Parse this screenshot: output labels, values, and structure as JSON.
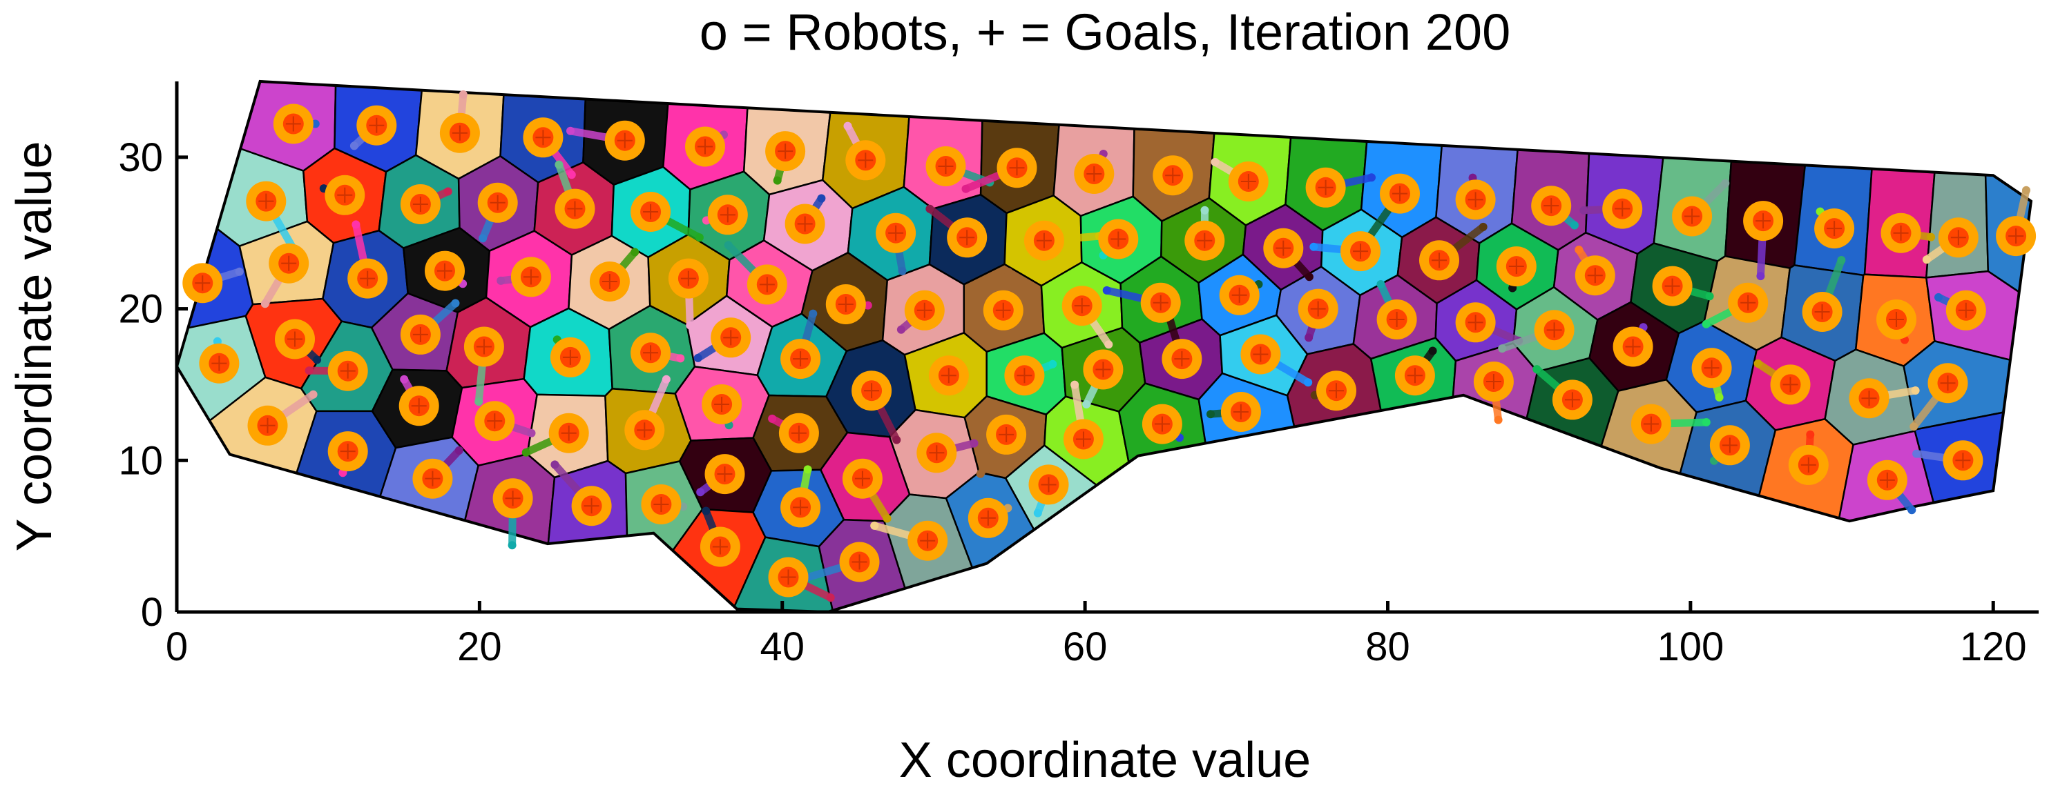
{
  "chart_data": {
    "type": "scatter",
    "title": "o = Robots, + = Goals, Iteration 200",
    "xlabel": "X coordinate value",
    "ylabel": "Y coordinate value",
    "xlim": [
      0,
      123
    ],
    "ylim": [
      0,
      35
    ],
    "x_ticks": [
      0,
      20,
      40,
      60,
      80,
      100,
      120
    ],
    "y_ticks": [
      0,
      10,
      20,
      30
    ],
    "grid": false,
    "legend": "none",
    "robot_color": "#FFA500",
    "goal_color": "#FF4500",
    "cell_border_color": "#000000",
    "region_boundary": [
      [
        0,
        16.2
      ],
      [
        5.5,
        35
      ],
      [
        120,
        28.8
      ],
      [
        122.5,
        27.1
      ],
      [
        120,
        8
      ],
      [
        115,
        7
      ],
      [
        110.5,
        6
      ],
      [
        98,
        9.5
      ],
      [
        85,
        14.3
      ],
      [
        63.5,
        10.3
      ],
      [
        53.5,
        3.2
      ],
      [
        43,
        0
      ],
      [
        37,
        0.2
      ],
      [
        31.5,
        5.2
      ],
      [
        24.5,
        4.5
      ],
      [
        3.5,
        10.4
      ]
    ],
    "series": [
      {
        "name": "Robots",
        "marker": "o",
        "points": [
          [
            7.7,
            32.2
          ],
          [
            13.2,
            32.1
          ],
          [
            18.7,
            31.6
          ],
          [
            24.2,
            31.3
          ],
          [
            29.6,
            31.1
          ],
          [
            34.9,
            30.7
          ],
          [
            40.2,
            30.4
          ],
          [
            45.5,
            29.8
          ],
          [
            50.8,
            29.4
          ],
          [
            55.5,
            29.3
          ],
          [
            60.6,
            28.9
          ],
          [
            65.8,
            28.8
          ],
          [
            70.8,
            28.4
          ],
          [
            75.9,
            28.0
          ],
          [
            80.8,
            27.6
          ],
          [
            85.8,
            27.2
          ],
          [
            90.8,
            26.8
          ],
          [
            95.5,
            26.6
          ],
          [
            100.1,
            26.1
          ],
          [
            104.8,
            25.8
          ],
          [
            109.5,
            25.3
          ],
          [
            113.9,
            25.0
          ],
          [
            117.7,
            24.7
          ],
          [
            121.5,
            24.8
          ],
          [
            5.9,
            27.1
          ],
          [
            11.1,
            27.5
          ],
          [
            16.1,
            26.9
          ],
          [
            21.2,
            27.0
          ],
          [
            26.3,
            26.6
          ],
          [
            31.3,
            26.4
          ],
          [
            36.4,
            26.2
          ],
          [
            41.5,
            25.6
          ],
          [
            47.5,
            25.0
          ],
          [
            52.2,
            24.7
          ],
          [
            57.3,
            24.5
          ],
          [
            62.2,
            24.6
          ],
          [
            67.9,
            24.5
          ],
          [
            73.1,
            24.0
          ],
          [
            78.2,
            23.8
          ],
          [
            83.4,
            23.2
          ],
          [
            88.5,
            22.8
          ],
          [
            93.7,
            22.2
          ],
          [
            98.8,
            21.5
          ],
          [
            103.8,
            20.4
          ],
          [
            108.7,
            19.8
          ],
          [
            113.6,
            19.3
          ],
          [
            118.2,
            19.9
          ],
          [
            1.7,
            21.7
          ],
          [
            7.4,
            23.0
          ],
          [
            12.6,
            22.0
          ],
          [
            17.7,
            22.5
          ],
          [
            23.4,
            22.1
          ],
          [
            28.6,
            21.8
          ],
          [
            33.8,
            22.0
          ],
          [
            39.0,
            21.6
          ],
          [
            44.2,
            20.3
          ],
          [
            49.4,
            19.9
          ],
          [
            54.6,
            19.9
          ],
          [
            59.8,
            20.2
          ],
          [
            65.0,
            20.4
          ],
          [
            70.2,
            20.9
          ],
          [
            75.4,
            20.0
          ],
          [
            80.6,
            19.3
          ],
          [
            85.8,
            19.1
          ],
          [
            91.0,
            18.6
          ],
          [
            96.2,
            17.5
          ],
          [
            101.4,
            16.1
          ],
          [
            106.6,
            15.0
          ],
          [
            111.8,
            14.1
          ],
          [
            117.0,
            15.1
          ],
          [
            2.8,
            16.4
          ],
          [
            7.8,
            18.0
          ],
          [
            11.3,
            15.9
          ],
          [
            16.1,
            18.3
          ],
          [
            20.3,
            17.5
          ],
          [
            26.0,
            16.8
          ],
          [
            31.3,
            17.1
          ],
          [
            36.6,
            18.1
          ],
          [
            41.2,
            16.7
          ],
          [
            45.9,
            14.6
          ],
          [
            51.0,
            15.6
          ],
          [
            56.0,
            15.6
          ],
          [
            61.2,
            16.0
          ],
          [
            66.4,
            16.7
          ],
          [
            71.6,
            17.0
          ],
          [
            76.6,
            14.6
          ],
          [
            81.8,
            15.6
          ],
          [
            87.0,
            15.2
          ],
          [
            92.2,
            14.0
          ],
          [
            97.4,
            12.4
          ],
          [
            102.6,
            11.0
          ],
          [
            107.8,
            9.7
          ],
          [
            113.0,
            8.7
          ],
          [
            118.0,
            10.0
          ],
          [
            6.0,
            12.3
          ],
          [
            11.3,
            10.6
          ],
          [
            16.0,
            13.6
          ],
          [
            21.0,
            12.6
          ],
          [
            25.9,
            11.8
          ],
          [
            30.9,
            12.0
          ],
          [
            36.0,
            13.7
          ],
          [
            41.1,
            11.8
          ],
          [
            50.2,
            10.5
          ],
          [
            54.8,
            11.7
          ],
          [
            59.9,
            11.4
          ],
          [
            65.1,
            12.4
          ],
          [
            70.3,
            13.2
          ],
          [
            16.9,
            8.8
          ],
          [
            22.2,
            7.5
          ],
          [
            27.4,
            7.0
          ],
          [
            32.0,
            7.1
          ],
          [
            36.2,
            9.1
          ],
          [
            41.2,
            6.9
          ],
          [
            45.3,
            8.8
          ],
          [
            49.6,
            4.7
          ],
          [
            53.6,
            6.2
          ],
          [
            57.6,
            8.4
          ],
          [
            35.9,
            4.3
          ],
          [
            40.4,
            2.3
          ],
          [
            45.1,
            3.3
          ]
        ]
      },
      {
        "name": "Goals",
        "marker": "+"
      }
    ]
  },
  "cell_palette": [
    "#8B1A4A",
    "#1F9E89",
    "#22AA22",
    "#CC44CC",
    "#0B2A5B",
    "#2266CC",
    "#C8A000",
    "#11BB55",
    "#883399",
    "#1E90FF",
    "#2244DD",
    "#D4C400",
    "#E0208A",
    "#FF55AA",
    "#AA44AA",
    "#CC2255",
    "#6677DD",
    "#F5D08A",
    "#22DD66",
    "#7FA59A",
    "#5A3A10",
    "#0E5C2E",
    "#11D8C8",
    "#9A3399",
    "#1E46B4",
    "#3A9A0A",
    "#2C7FCC",
    "#E8A0A0",
    "#C8A060",
    "#2AA870",
    "#7733CC",
    "#111111",
    "#7A1A8A",
    "#99DDCC",
    "#A06630",
    "#2C6BB4",
    "#F0A4D0",
    "#66BB88",
    "#FF33AA",
    "#33CCEE",
    "#FF3311",
    "#88EE22",
    "#FF7722",
    "#11AAAA",
    "#330011",
    "#F2C8A8"
  ]
}
